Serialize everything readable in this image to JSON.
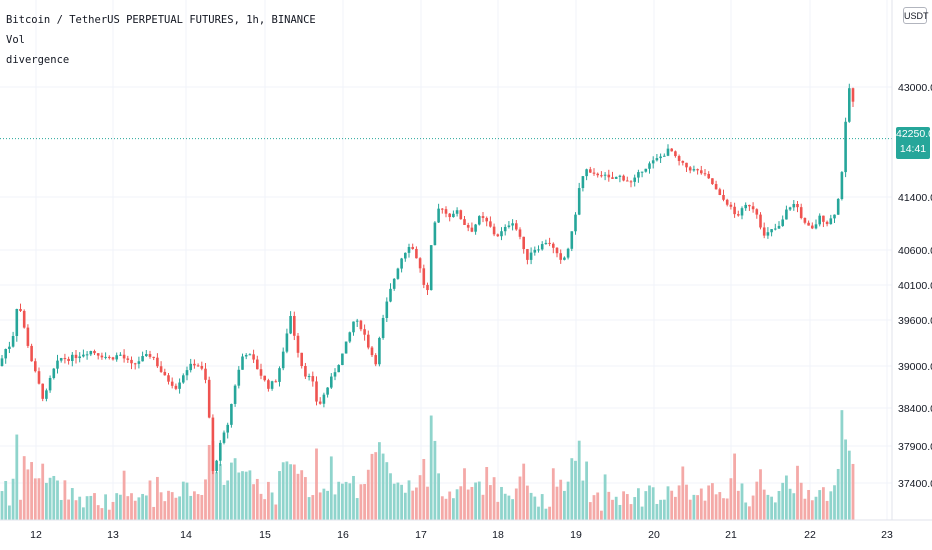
{
  "legend": {
    "symbol_line": "Bitcoin / TetherUS PERPETUAL FUTURES, 1h, BINANCE",
    "vol_label": "Vol",
    "divergence_label": "divergence"
  },
  "currency_button": "USDT",
  "last_price": {
    "value": "42250.0",
    "countdown": "14:41"
  },
  "colors": {
    "up": "#26a69a",
    "down": "#ef5350",
    "up_vol": "#8fd4cc",
    "down_vol": "#f4a9a7",
    "grid": "#f0f3fa"
  },
  "chart_data": {
    "type": "candlestick",
    "interval": "1h",
    "price_axis": {
      "ticks": [
        "43000.0",
        "41400.0",
        "40600.0",
        "40100.0",
        "39600.0",
        "39000.0",
        "38400.0",
        "37900.0",
        "37400.0"
      ],
      "last_price": 42250.0
    },
    "time_axis": {
      "ticks": [
        "12",
        "13",
        "14",
        "15",
        "16",
        "17",
        "18",
        "19",
        "20",
        "21",
        "22",
        "23"
      ]
    },
    "price_path": [
      [
        0,
        39000
      ],
      [
        4,
        39200
      ],
      [
        12,
        39300
      ],
      [
        18,
        39900
      ],
      [
        24,
        39500
      ],
      [
        32,
        39050
      ],
      [
        44,
        38500
      ],
      [
        52,
        38900
      ],
      [
        60,
        39100
      ],
      [
        70,
        39100
      ],
      [
        80,
        39150
      ],
      [
        90,
        39200
      ],
      [
        100,
        39150
      ],
      [
        110,
        39100
      ],
      [
        120,
        39150
      ],
      [
        132,
        39000
      ],
      [
        142,
        39100
      ],
      [
        152,
        39150
      ],
      [
        164,
        38850
      ],
      [
        176,
        38700
      ],
      [
        186,
        38950
      ],
      [
        196,
        39050
      ],
      [
        204,
        38900
      ],
      [
        208,
        38600
      ],
      [
        212,
        37500
      ],
      [
        220,
        37900
      ],
      [
        228,
        38200
      ],
      [
        236,
        38800
      ],
      [
        244,
        39200
      ],
      [
        252,
        39100
      ],
      [
        260,
        38900
      ],
      [
        268,
        38700
      ],
      [
        276,
        38800
      ],
      [
        284,
        39200
      ],
      [
        290,
        39700
      ],
      [
        296,
        39300
      ],
      [
        304,
        38900
      ],
      [
        312,
        38800
      ],
      [
        318,
        38400
      ],
      [
        326,
        38650
      ],
      [
        334,
        38900
      ],
      [
        344,
        39200
      ],
      [
        354,
        39600
      ],
      [
        362,
        39500
      ],
      [
        370,
        39200
      ],
      [
        376,
        39050
      ],
      [
        380,
        39400
      ],
      [
        386,
        39800
      ],
      [
        392,
        40100
      ],
      [
        400,
        40450
      ],
      [
        410,
        40700
      ],
      [
        418,
        40450
      ],
      [
        424,
        40100
      ],
      [
        428,
        40000
      ],
      [
        432,
        40800
      ],
      [
        440,
        41300
      ],
      [
        448,
        41100
      ],
      [
        456,
        41200
      ],
      [
        464,
        41000
      ],
      [
        472,
        40900
      ],
      [
        480,
        41100
      ],
      [
        488,
        41000
      ],
      [
        496,
        40800
      ],
      [
        504,
        40900
      ],
      [
        512,
        41050
      ],
      [
        520,
        40800
      ],
      [
        526,
        40450
      ],
      [
        532,
        40600
      ],
      [
        540,
        40650
      ],
      [
        548,
        40750
      ],
      [
        556,
        40550
      ],
      [
        562,
        40400
      ],
      [
        570,
        40700
      ],
      [
        576,
        41200
      ],
      [
        580,
        41600
      ],
      [
        586,
        41800
      ],
      [
        592,
        41700
      ],
      [
        600,
        41750
      ],
      [
        610,
        41650
      ],
      [
        620,
        41700
      ],
      [
        632,
        41600
      ],
      [
        642,
        41800
      ],
      [
        652,
        41900
      ],
      [
        662,
        42000
      ],
      [
        670,
        42100
      ],
      [
        676,
        41950
      ],
      [
        684,
        41850
      ],
      [
        692,
        41800
      ],
      [
        702,
        41750
      ],
      [
        712,
        41600
      ],
      [
        720,
        41400
      ],
      [
        728,
        41300
      ],
      [
        736,
        41100
      ],
      [
        742,
        41200
      ],
      [
        748,
        41300
      ],
      [
        756,
        41200
      ],
      [
        764,
        40800
      ],
      [
        772,
        40900
      ],
      [
        780,
        40950
      ],
      [
        788,
        41250
      ],
      [
        796,
        41300
      ],
      [
        804,
        41000
      ],
      [
        812,
        40900
      ],
      [
        820,
        41100
      ],
      [
        828,
        41000
      ],
      [
        836,
        41200
      ],
      [
        840,
        41500
      ],
      [
        844,
        42100
      ],
      [
        848,
        43000
      ],
      [
        852,
        42950
      ],
      [
        856,
        42250
      ]
    ]
  }
}
